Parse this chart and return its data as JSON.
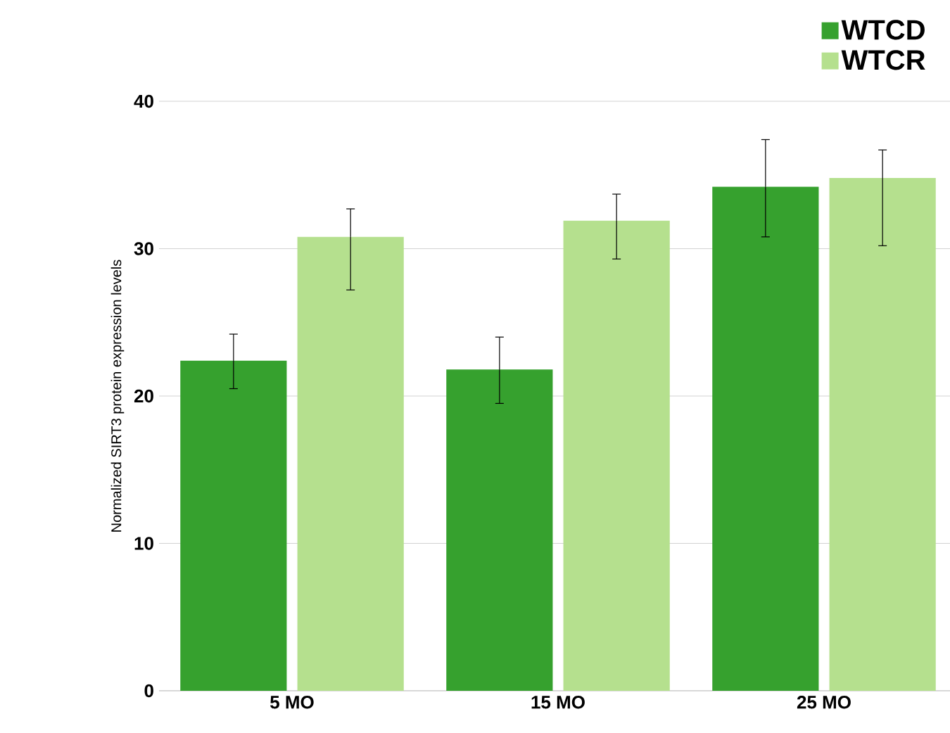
{
  "chart_data": {
    "type": "bar",
    "ylabel": "Normalized SIRT3 protein expression levels",
    "categories": [
      "5 MO",
      "15 MO",
      "25 MO"
    ],
    "series": [
      {
        "name": "WTCD",
        "color": "#36a12e",
        "values": [
          22.4,
          21.8,
          34.2
        ],
        "errors": [
          [
            20.5,
            24.2
          ],
          [
            19.5,
            24.0
          ],
          [
            30.8,
            37.4
          ]
        ]
      },
      {
        "name": "WTCR",
        "color": "#b5e08e",
        "values": [
          30.8,
          31.9,
          34.8
        ],
        "errors": [
          [
            27.2,
            32.7
          ],
          [
            29.3,
            33.7
          ],
          [
            30.2,
            36.7
          ]
        ]
      }
    ],
    "ylim": [
      0,
      40
    ],
    "yticks": [
      0,
      10,
      20,
      30,
      40
    ],
    "grid": "y",
    "legend": "top right"
  }
}
